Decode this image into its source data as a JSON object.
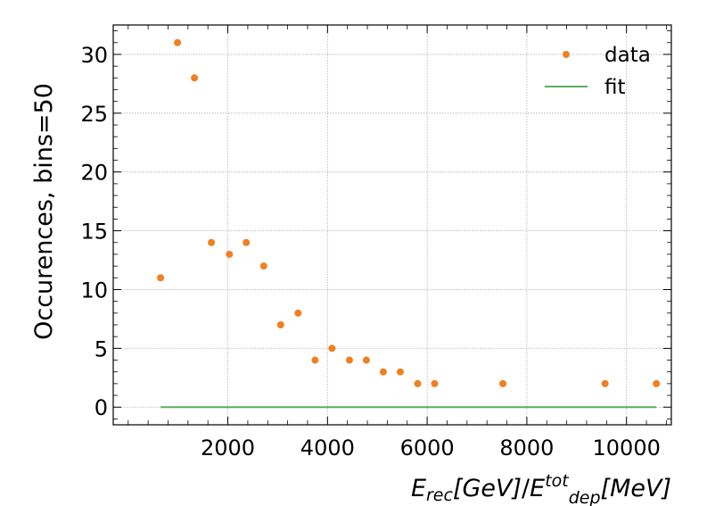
{
  "chart_data": {
    "type": "scatter",
    "title": "",
    "xlabel": {
      "main": "E",
      "sub": "rec",
      "unit": "[GeV]",
      "slash": "/",
      "main2": "E",
      "sup2": "tot",
      "sub2": "dep",
      "unit2": "[MeV]"
    },
    "ylabel": "Occurences, bins=50",
    "xlim": [
      -300,
      10900
    ],
    "ylim": [
      -1.5,
      32.5
    ],
    "xticks": [
      2000,
      4000,
      6000,
      8000,
      10000
    ],
    "xtick_labels": [
      "2000",
      "4000",
      "6000",
      "8000",
      "10000"
    ],
    "yticks": [
      0,
      5,
      10,
      15,
      20,
      25,
      30
    ],
    "ytick_labels": [
      "0",
      "5",
      "10",
      "15",
      "20",
      "25",
      "30"
    ],
    "grid": true,
    "legend": {
      "placement": "top-right",
      "entries": [
        "data",
        "fit"
      ]
    },
    "series": [
      {
        "name": "data",
        "kind": "scatter",
        "color": "#f08020",
        "points": [
          [
            650,
            11
          ],
          [
            990,
            31
          ],
          [
            1330,
            28
          ],
          [
            1670,
            14
          ],
          [
            2030,
            13
          ],
          [
            2370,
            14
          ],
          [
            2720,
            12
          ],
          [
            3060,
            7
          ],
          [
            3410,
            8
          ],
          [
            3750,
            4
          ],
          [
            4090,
            5
          ],
          [
            4440,
            4
          ],
          [
            4780,
            4
          ],
          [
            5120,
            3
          ],
          [
            5460,
            3
          ],
          [
            5810,
            2
          ],
          [
            6150,
            2
          ],
          [
            7520,
            2
          ],
          [
            9570,
            2
          ],
          [
            10600,
            2
          ]
        ]
      },
      {
        "name": "fit",
        "kind": "line",
        "color": "#5aae61",
        "points": [
          [
            650,
            0
          ],
          [
            10600,
            0
          ]
        ]
      }
    ]
  }
}
